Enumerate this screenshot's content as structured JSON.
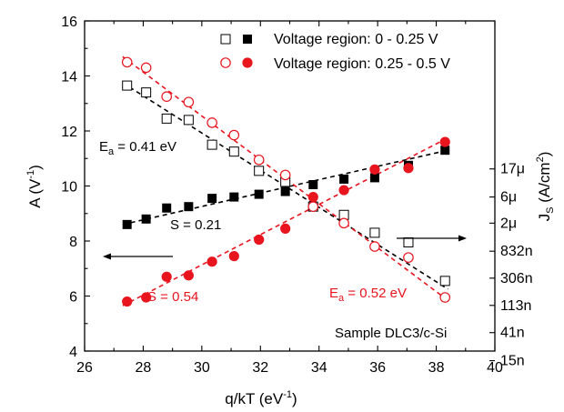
{
  "chart_data": {
    "type": "scatter",
    "xlabel": "q/kT (eV",
    "xlabel_sup": "-1",
    "xlabel_close": ")",
    "ylabel": "A (V",
    "ylabel_sup": "-1",
    "ylabel_close": ")",
    "y2label_main": "J",
    "y2label_sub": "S",
    "y2label_unit": " (A/cm",
    "y2label_sup": "2",
    "y2label_close": ")",
    "xlim": [
      26,
      40
    ],
    "ylim": [
      4,
      16
    ],
    "x_ticks": [
      "26",
      "28",
      "30",
      "32",
      "34",
      "36",
      "38",
      "40"
    ],
    "y_ticks": [
      "4",
      "6",
      "8",
      "10",
      "12",
      "14",
      "16"
    ],
    "y2_ticks": [
      {
        "label": "15n",
        "y": 3.65
      },
      {
        "label": "41n",
        "y": 4.67
      },
      {
        "label": "113n",
        "y": 5.66
      },
      {
        "label": "306n",
        "y": 6.65
      },
      {
        "label": "832n",
        "y": 7.63
      },
      {
        "label": "2μ",
        "y": 8.65
      },
      {
        "label": "6μ",
        "y": 9.6
      },
      {
        "label": "17μ",
        "y": 10.62
      }
    ],
    "legend": [
      {
        "label": "Voltage region:  0 - 0.25 V",
        "color": "#000000"
      },
      {
        "label": "Voltage region:  0.25 - 0.5 V",
        "color": "#e8141e"
      }
    ],
    "series": [
      {
        "name": "Voltage region:  0 - 0.25 V",
        "color": "#000000",
        "open_points": [
          [
            27.45,
            13.65
          ],
          [
            28.1,
            13.4
          ],
          [
            28.8,
            12.45
          ],
          [
            29.55,
            12.4
          ],
          [
            30.35,
            11.5
          ],
          [
            31.1,
            11.25
          ],
          [
            31.95,
            10.55
          ],
          [
            32.85,
            10.15
          ],
          [
            33.8,
            9.25
          ],
          [
            34.85,
            8.95
          ],
          [
            35.9,
            8.3
          ],
          [
            37.05,
            7.95
          ],
          [
            38.3,
            6.55
          ]
        ],
        "filled_points": [
          [
            27.45,
            8.6
          ],
          [
            28.1,
            8.8
          ],
          [
            28.8,
            9.2
          ],
          [
            29.55,
            9.25
          ],
          [
            30.35,
            9.55
          ],
          [
            31.1,
            9.6
          ],
          [
            31.95,
            9.7
          ],
          [
            32.85,
            9.8
          ],
          [
            33.8,
            10.05
          ],
          [
            34.85,
            10.25
          ],
          [
            35.9,
            10.3
          ],
          [
            37.05,
            10.75
          ],
          [
            38.3,
            11.3
          ]
        ],
        "open_fit": [
          [
            27.3,
            13.75
          ],
          [
            38.4,
            6.25
          ]
        ],
        "filled_fit": [
          [
            27.3,
            8.6
          ],
          [
            38.4,
            11.3
          ]
        ]
      },
      {
        "name": "Voltage region:  0.25 - 0.5 V",
        "color": "#e8141e",
        "open_points": [
          [
            27.45,
            14.5
          ],
          [
            28.1,
            14.3
          ],
          [
            28.8,
            13.25
          ],
          [
            29.55,
            13.05
          ],
          [
            30.35,
            12.3
          ],
          [
            31.1,
            11.85
          ],
          [
            31.95,
            10.95
          ],
          [
            32.85,
            10.4
          ],
          [
            33.8,
            9.25
          ],
          [
            34.85,
            8.65
          ],
          [
            35.9,
            7.8
          ],
          [
            37.05,
            7.4
          ],
          [
            38.3,
            5.95
          ]
        ],
        "filled_points": [
          [
            27.45,
            5.8
          ],
          [
            28.1,
            5.95
          ],
          [
            28.8,
            6.7
          ],
          [
            29.55,
            6.75
          ],
          [
            30.35,
            7.25
          ],
          [
            31.1,
            7.45
          ],
          [
            31.95,
            8.05
          ],
          [
            32.85,
            8.45
          ],
          [
            33.8,
            9.6
          ],
          [
            34.85,
            9.85
          ],
          [
            35.9,
            10.6
          ],
          [
            37.05,
            10.65
          ],
          [
            38.3,
            11.6
          ]
        ],
        "open_fit": [
          [
            27.3,
            14.7
          ],
          [
            38.2,
            6.0
          ]
        ],
        "filled_fit": [
          [
            27.3,
            5.65
          ],
          [
            38.4,
            11.75
          ]
        ]
      }
    ],
    "annotations": {
      "ea_black": {
        "main": "E",
        "sub": "a",
        "rest": " = 0.41 eV"
      },
      "s_black": "S = 0.21",
      "s_red": "S = 0.54",
      "ea_red": {
        "main": "E",
        "sub": "a",
        "rest": " = 0.52 eV"
      },
      "sample": "Sample DLC3/c-Si"
    }
  }
}
